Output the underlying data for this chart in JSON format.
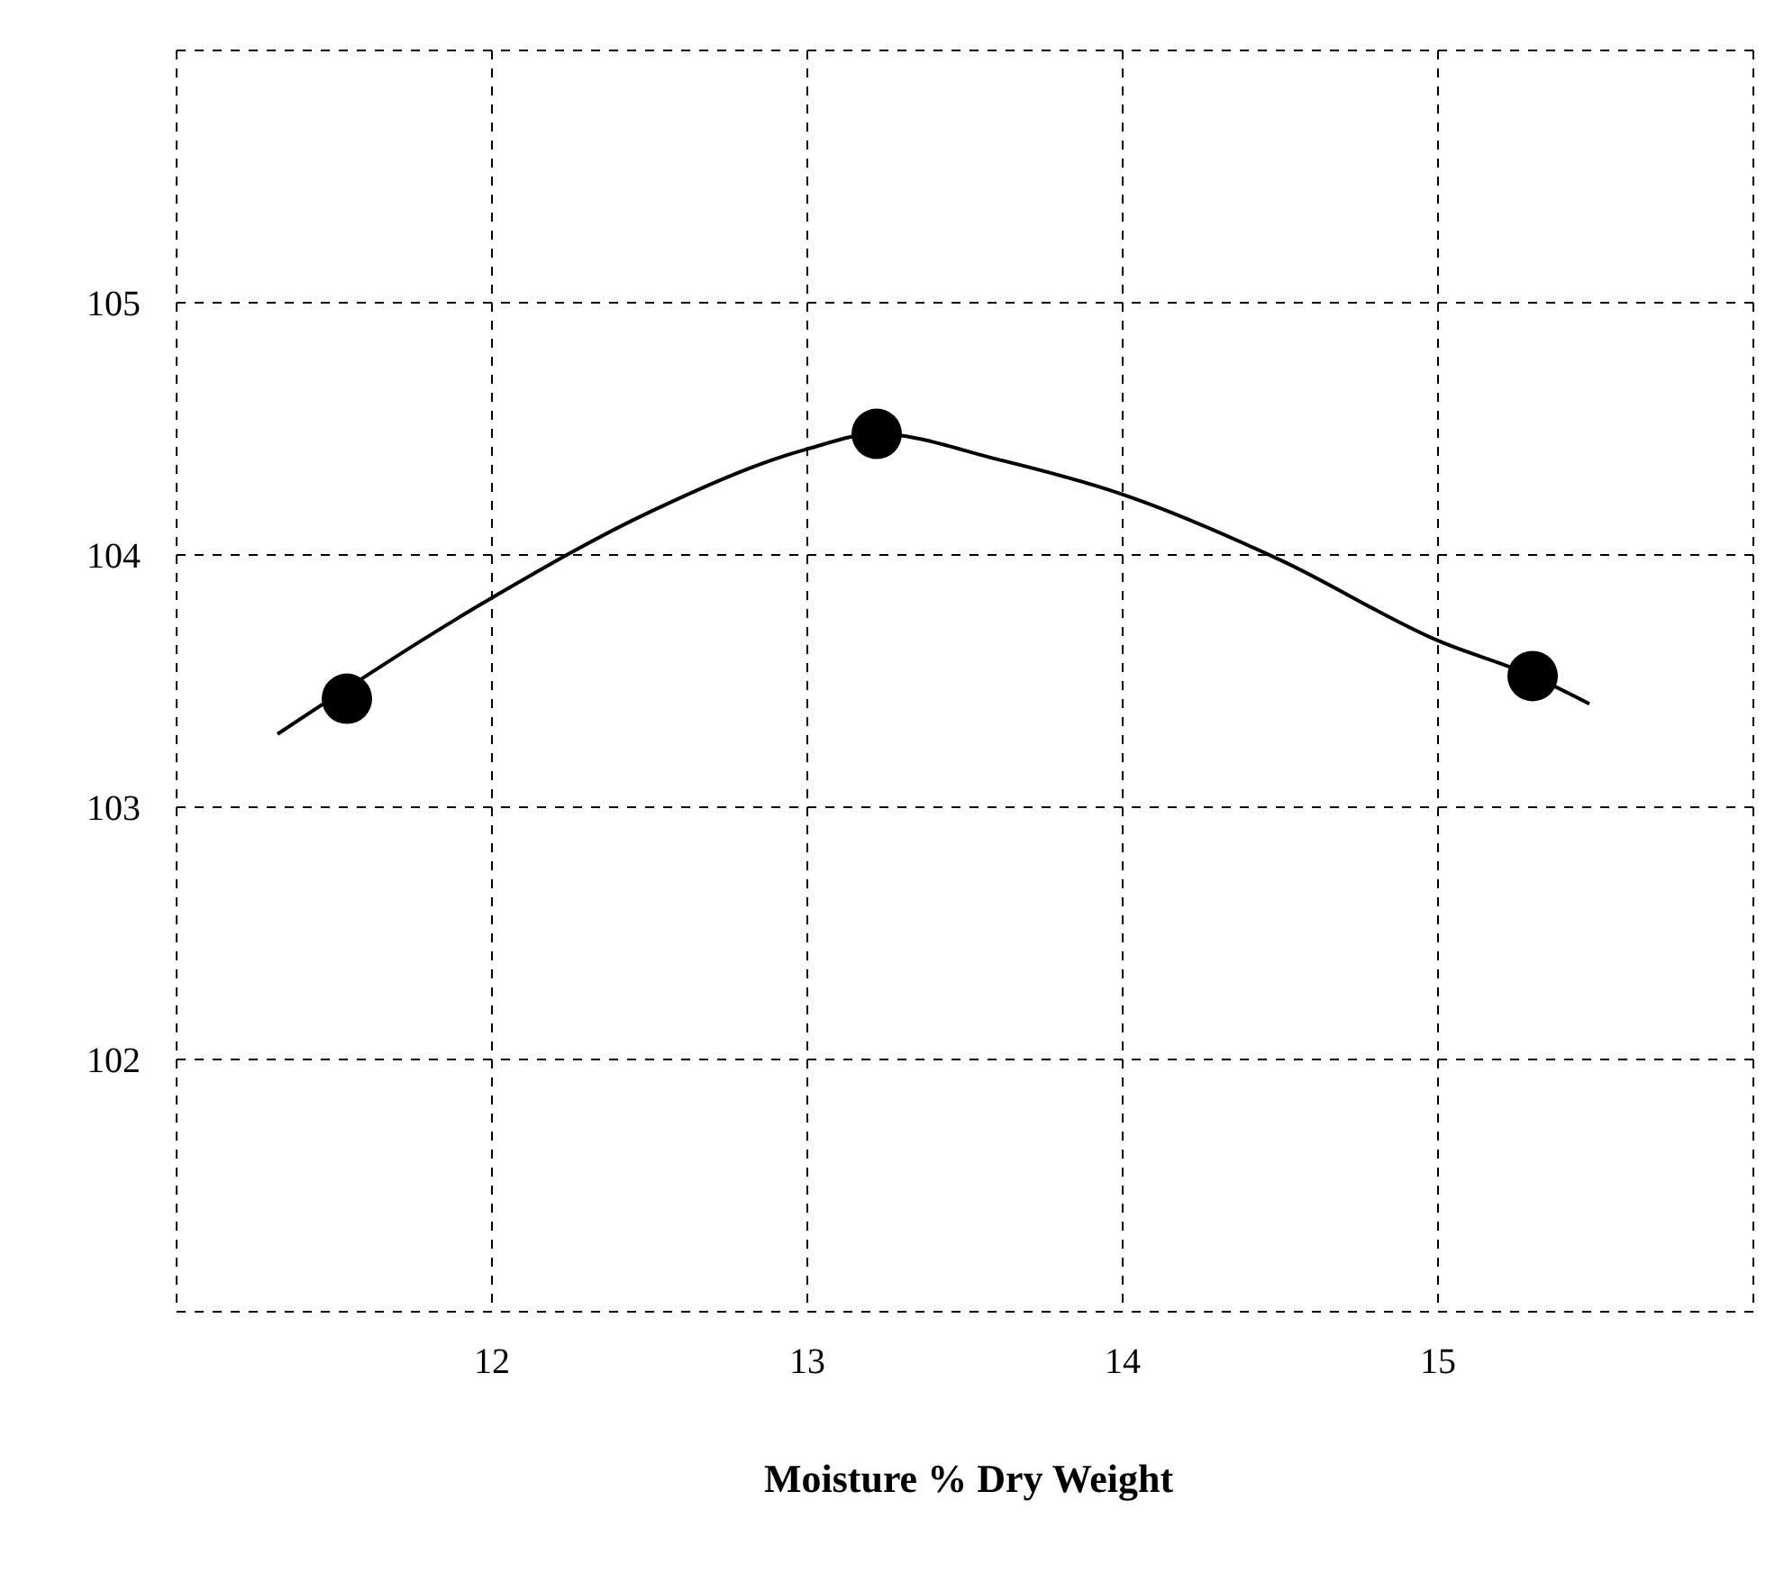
{
  "chart_data": {
    "type": "scatter",
    "xlabel": "Moisture % Dry Weight",
    "xlim": [
      11,
      16
    ],
    "xticks": [
      {
        "value": 11,
        "label": null
      },
      12,
      13,
      14,
      15,
      {
        "value": 16,
        "label": null
      }
    ],
    "ylim": [
      101,
      106
    ],
    "yticks": [
      {
        "value": 101,
        "label": null
      },
      102,
      103,
      104,
      105,
      {
        "value": 106,
        "label": null
      }
    ],
    "grid": true,
    "line_style": "solid",
    "series": [
      {
        "marker": "circle",
        "color": "#000000",
        "x": [
          11.54,
          13.22,
          15.3
        ],
        "values": [
          103.43,
          104.48,
          103.52
        ]
      },
      {
        "type": "line",
        "marker": "none",
        "color": "#000000",
        "x": [
          11.32,
          12,
          12.5,
          13,
          13.22,
          13.6,
          14,
          14.5,
          15,
          15.3,
          15.48
        ],
        "values": [
          103.29,
          103.83,
          104.17,
          104.42,
          104.48,
          104.38,
          104.24,
          103.98,
          103.66,
          103.52,
          103.41
        ]
      }
    ]
  }
}
